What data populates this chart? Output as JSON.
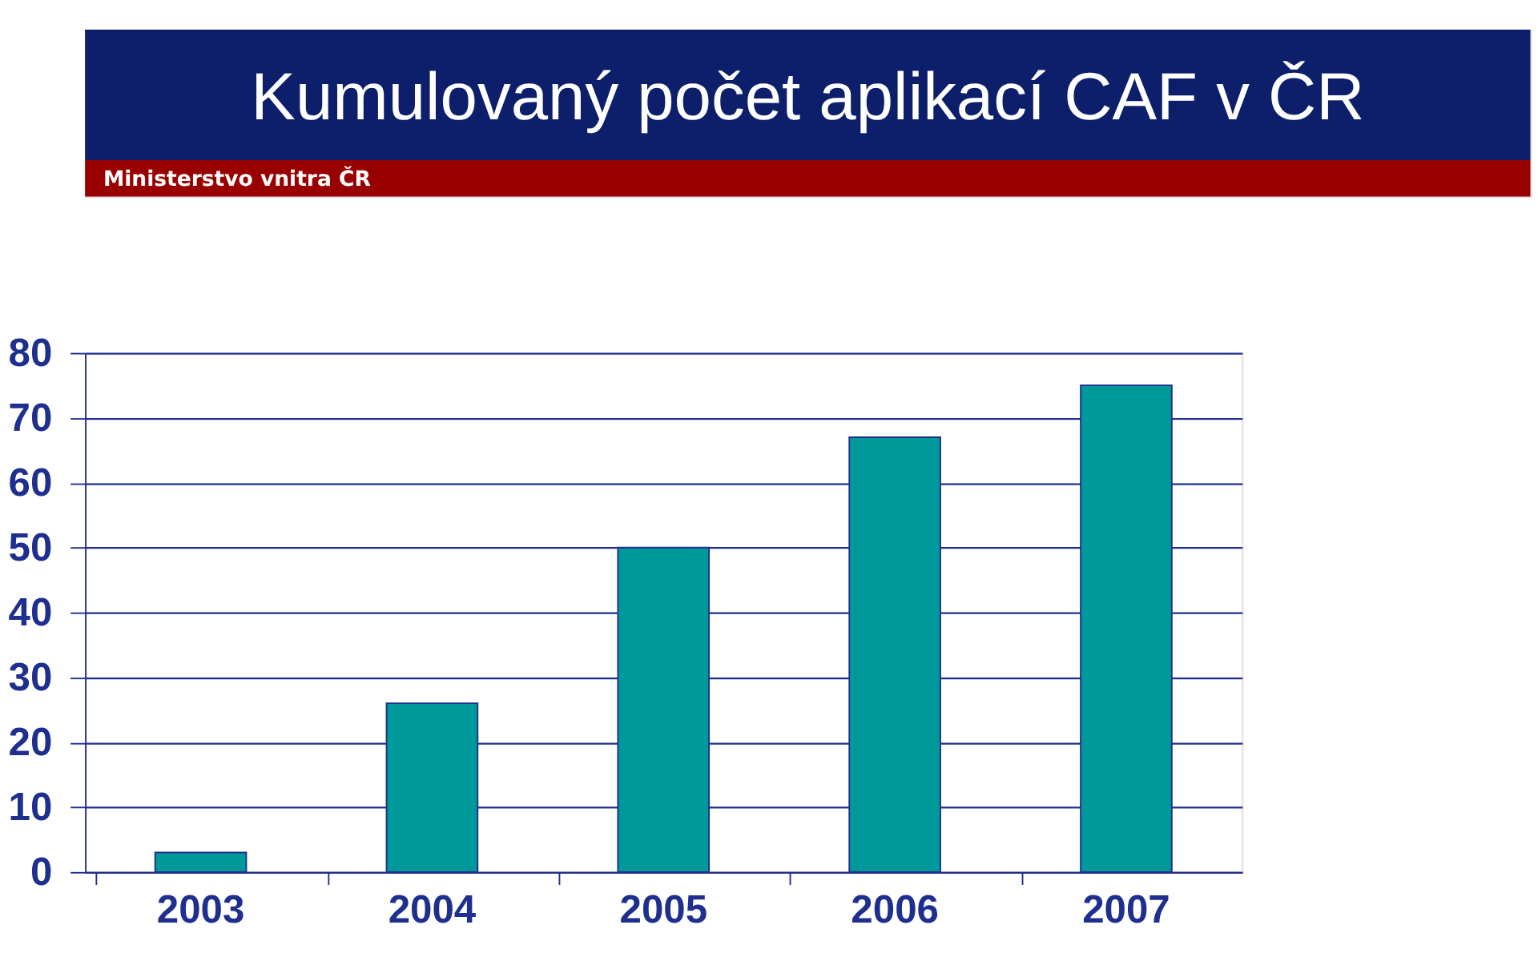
{
  "chart_data": {
    "type": "bar",
    "title": "Kumulovaný počet aplikací CAF v ČR",
    "subtitle": "Ministerstvo vnitra ČR",
    "categories": [
      "2003",
      "2004",
      "2005",
      "2006",
      "2007"
    ],
    "values": [
      3,
      26,
      50,
      67,
      75
    ],
    "color": "#009999",
    "ylim": [
      0,
      80
    ],
    "yticks": [
      0,
      10,
      20,
      30,
      40,
      50,
      60,
      70,
      80
    ],
    "grid": "y"
  }
}
